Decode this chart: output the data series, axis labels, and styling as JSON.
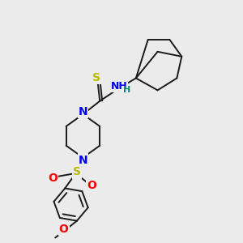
{
  "background_color": "#ebebeb",
  "figsize": [
    3.0,
    3.0
  ],
  "dpi": 100,
  "bond_color": "#1a1a1a",
  "bond_width": 1.4,
  "colors": {
    "N": "#0000ee",
    "O": "#ff0000",
    "S_thio": "#bbbb00",
    "S_sulf": "#bbbb00",
    "H_nh": "#008888",
    "C": "#1a1a1a"
  },
  "xlim": [
    0,
    10
  ],
  "ylim": [
    0,
    10
  ]
}
